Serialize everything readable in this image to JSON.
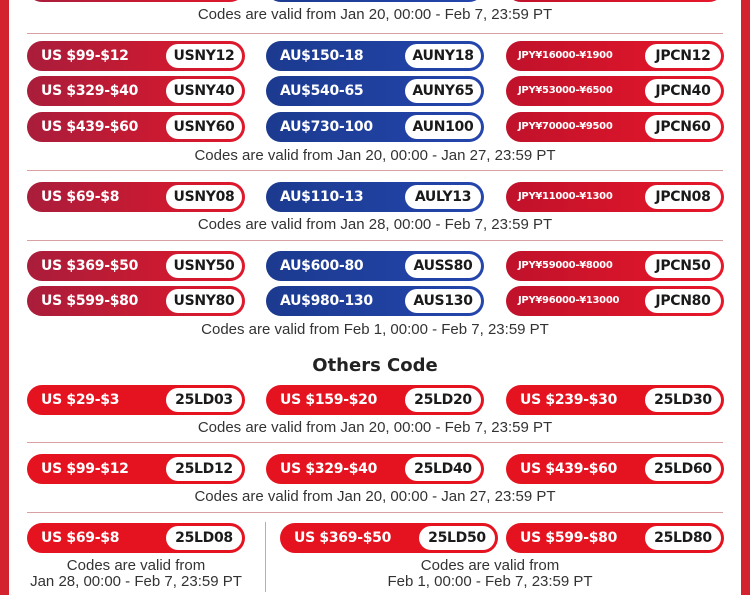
{
  "intro_caption": "Codes are valid from Jan 20, 00:00 - Feb 7, 23:59 PT",
  "groups": [
    {
      "rows": [
        [
          {
            "label": "US $99-$12",
            "code": "USNY12"
          },
          {
            "label": "AU$150-18",
            "code": "AUNY18"
          },
          {
            "label": "JPY¥16000-¥1900",
            "code": "JPCN12"
          }
        ],
        [
          {
            "label": "US $329-$40",
            "code": "USNY40"
          },
          {
            "label": "AU$540-65",
            "code": "AUNY65"
          },
          {
            "label": "JPY¥53000-¥6500",
            "code": "JPCN40"
          }
        ],
        [
          {
            "label": "US $439-$60",
            "code": "USNY60"
          },
          {
            "label": "AU$730-100",
            "code": "AUN100"
          },
          {
            "label": "JPY¥70000-¥9500",
            "code": "JPCN60"
          }
        ]
      ],
      "caption": "Codes are valid from Jan 20, 00:00 - Jan 27, 23:59 PT"
    },
    {
      "rows": [
        [
          {
            "label": "US $69-$8",
            "code": "USNY08"
          },
          {
            "label": "AU$110-13",
            "code": "AULY13"
          },
          {
            "label": "JPY¥11000-¥1300",
            "code": "JPCN08"
          }
        ]
      ],
      "caption": "Codes are valid from Jan 28, 00:00 - Feb 7, 23:59 PT"
    },
    {
      "rows": [
        [
          {
            "label": "US $369-$50",
            "code": "USNY50"
          },
          {
            "label": "AU$600-80",
            "code": "AUSS80"
          },
          {
            "label": "JPY¥59000-¥8000",
            "code": "JPCN50"
          }
        ],
        [
          {
            "label": "US $599-$80",
            "code": "USNY80"
          },
          {
            "label": "AU$980-130",
            "code": "AUS130"
          },
          {
            "label": "JPY¥96000-¥13000",
            "code": "JPCN80"
          }
        ]
      ],
      "caption": "Codes are valid from Feb 1, 00:00 - Feb 7, 23:59 PT"
    }
  ],
  "others": {
    "title": "Others Code",
    "groups": [
      {
        "rows": [
          [
            {
              "label": "US $29-$3",
              "code": "25LD03"
            },
            {
              "label": "US $159-$20",
              "code": "25LD20"
            },
            {
              "label": "US $239-$30",
              "code": "25LD30"
            }
          ]
        ],
        "caption": "Codes are valid from Jan 20, 00:00 - Feb 7, 23:59 PT"
      },
      {
        "rows": [
          [
            {
              "label": "US $99-$12",
              "code": "25LD12"
            },
            {
              "label": "US $329-$40",
              "code": "25LD40"
            },
            {
              "label": "US $439-$60",
              "code": "25LD60"
            }
          ]
        ],
        "caption": "Codes are valid from Jan 20, 00:00 - Jan 27, 23:59 PT"
      }
    ],
    "final": {
      "coupons": [
        {
          "label": "US $69-$8",
          "code": "25LD08"
        },
        {
          "label": "US $369-$50",
          "code": "25LD50"
        },
        {
          "label": "US $599-$80",
          "code": "25LD80"
        }
      ],
      "left_caption": [
        "Codes are valid from",
        "Jan 28, 00:00 - Feb 7, 23:59 PT"
      ],
      "right_caption": [
        "Codes are valid from",
        "Feb 1, 00:00 - Feb 7, 23:59 PT"
      ]
    }
  }
}
